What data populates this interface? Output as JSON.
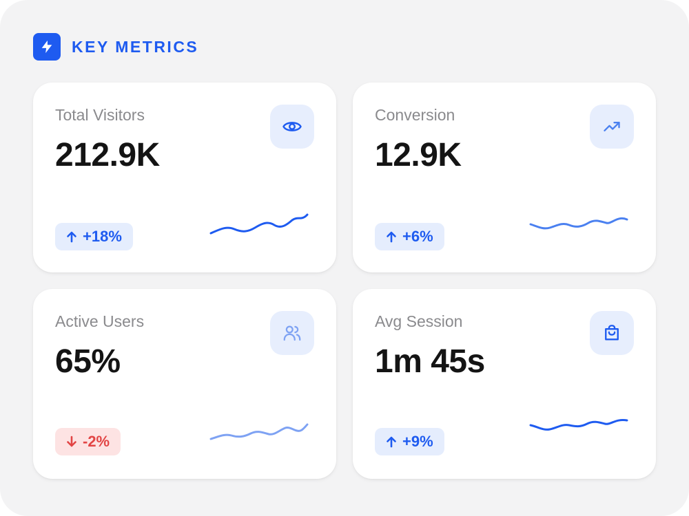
{
  "header": {
    "title": "KEY METRICS",
    "icon": "lightning-bolt-icon",
    "accent_color": "#1e5bf0"
  },
  "cards": [
    {
      "label": "Total Visitors",
      "value": "212.9K",
      "icon": "eye-icon",
      "trend": "up",
      "change": "+18%",
      "sparkline_color": "#1e5bf0"
    },
    {
      "label": "Conversion",
      "value": "12.9K",
      "icon": "trending-up-icon",
      "trend": "up",
      "change": "+6%",
      "sparkline_color": "#4a80f0"
    },
    {
      "label": "Active Users",
      "value": "65%",
      "icon": "users-icon",
      "trend": "down",
      "change": "-2%",
      "sparkline_color": "#7ea2f3"
    },
    {
      "label": "Avg Session",
      "value": "1m 45s",
      "icon": "shopping-bag-icon",
      "trend": "up",
      "change": "+9%",
      "sparkline_color": "#1e5bf0"
    }
  ],
  "colors": {
    "up_text": "#1e5bf0",
    "up_bg": "#e5edfd",
    "down_text": "#e24545",
    "down_bg": "#fde3e3",
    "icon_bg": "#e7eefd"
  }
}
